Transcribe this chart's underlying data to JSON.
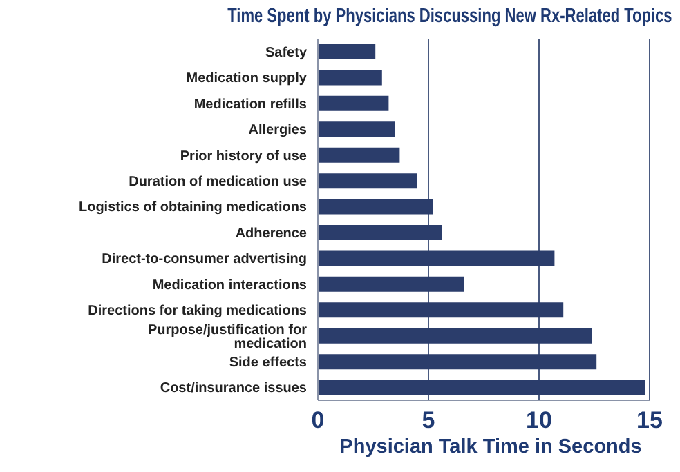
{
  "chart_data": {
    "type": "bar",
    "orientation": "horizontal",
    "title": "Time Spent by Physicians Discussing New Rx-Related Topics",
    "xlabel": "Physician Talk Time in Seconds",
    "categories": [
      "Safety",
      "Medication supply",
      "Medication refills",
      "Allergies",
      "Prior history of use",
      "Duration of medication use",
      "Logistics of obtaining medications",
      "Adherence",
      "Direct-to-consumer advertising",
      "Medication interactions",
      "Directions for taking medications",
      "Purpose/justification for medication",
      "Side effects",
      "Cost/insurance issues"
    ],
    "values": [
      2.6,
      2.9,
      3.2,
      3.5,
      3.7,
      4.5,
      5.2,
      5.6,
      10.7,
      6.6,
      11.1,
      12.4,
      12.6,
      14.8
    ],
    "color": "#2b3d6b",
    "xlim": [
      0,
      15
    ],
    "xticks": [
      0,
      5,
      10,
      15
    ],
    "grid": "x"
  }
}
